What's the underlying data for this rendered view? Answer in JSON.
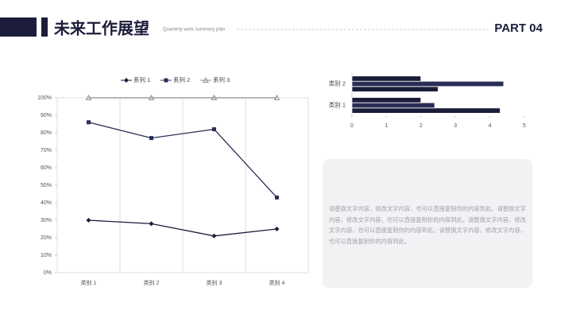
{
  "header": {
    "title": "未来工作展望",
    "subtitle": "Quarterly work summary plan",
    "part": "PART 04"
  },
  "chart_data": [
    {
      "type": "line",
      "categories": [
        "类别 1",
        "类别 2",
        "类别 3",
        "类别 4"
      ],
      "series": [
        {
          "name": "系列 1",
          "color": "#1b1d3a",
          "marker": "diamond",
          "values": [
            30,
            28,
            21,
            25
          ]
        },
        {
          "name": "系列 2",
          "color": "#2a2d55",
          "marker": "square",
          "values": [
            86,
            77,
            82,
            43
          ]
        },
        {
          "name": "系列 3",
          "color": "#8c8c8c",
          "marker": "triangle",
          "values": [
            100,
            100,
            100,
            100
          ]
        }
      ],
      "ylim": [
        0,
        100
      ],
      "yticks": [
        {
          "value": 0,
          "label": "0%"
        },
        {
          "value": 10,
          "label": "10%"
        },
        {
          "value": 20,
          "label": "20%"
        },
        {
          "value": 30,
          "label": "30%"
        },
        {
          "value": 40,
          "label": "40%"
        },
        {
          "value": 50,
          "label": "50%"
        },
        {
          "value": 60,
          "label": "60%"
        },
        {
          "value": 70,
          "label": "70%"
        },
        {
          "value": 80,
          "label": "80%"
        },
        {
          "value": 90,
          "label": "90%"
        },
        {
          "value": 100,
          "label": "100%"
        }
      ],
      "grid": true,
      "legend": "top"
    },
    {
      "type": "barh",
      "categories": [
        "类别 1",
        "类别 2"
      ],
      "series": [
        {
          "color": "#1b1d3a",
          "values": [
            4.3,
            2.5
          ]
        },
        {
          "color": "#2a2d55",
          "values": [
            2.4,
            4.4
          ]
        },
        {
          "color": "#1b1d3a",
          "values": [
            2,
            2
          ]
        }
      ],
      "xlim": [
        0,
        5
      ],
      "xticks": [
        0,
        1,
        2,
        3,
        4,
        5
      ]
    }
  ],
  "text": "请替换文字内容，修改文字内容，也可以直接复制你的内容到此。请替换文字内容，修改文字内容，也可以直接复制你的内容到此。请替换文字内容，修改文字内容，也可以直接复制你的内容到此。请替换文字内容，修改文字内容，也可以直接复制你的内容到此。"
}
